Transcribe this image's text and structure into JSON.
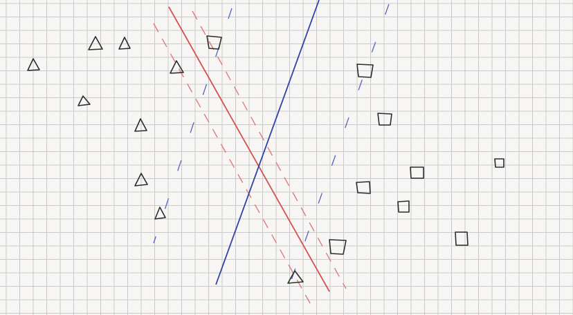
{
  "colors": {
    "paper": "#f7f6f4",
    "grid": "#c9c9c9",
    "ink": "#2b2b2b",
    "red_line": "#d2504f",
    "red_margin": "#dc7b77",
    "blue_line": "#3040a8",
    "blue_margin": "#5a6cc0"
  },
  "shapes": {
    "triangle_class": "triangle",
    "square_class": "square"
  }
}
